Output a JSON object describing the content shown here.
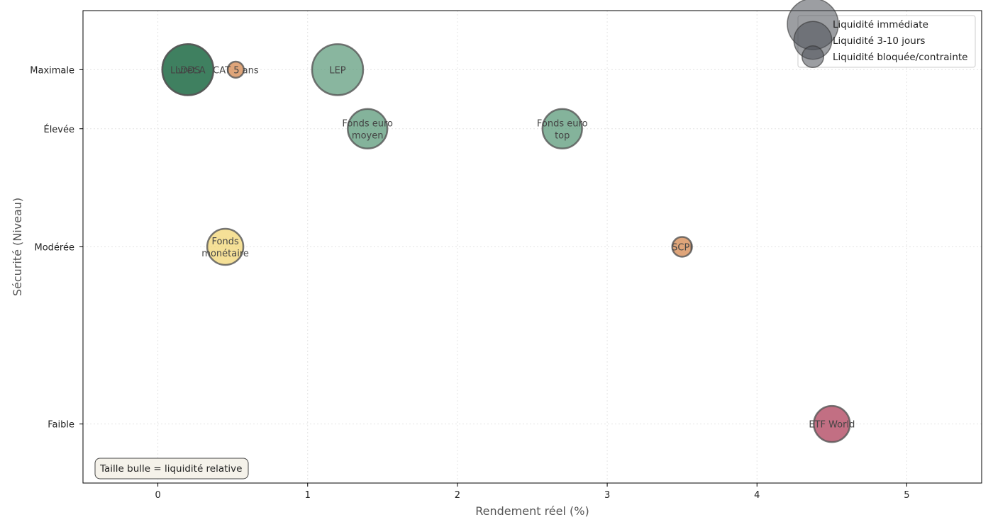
{
  "chart_data": {
    "type": "scatter",
    "title": "",
    "xlabel": "Rendement réel (%)",
    "ylabel": "Sécurité (Niveau)",
    "xlim": [
      -0.5,
      5.5
    ],
    "ylim": [
      0.1,
      4.1
    ],
    "xticks": [
      0,
      1,
      2,
      3,
      4,
      5
    ],
    "yticks": [
      {
        "value": 0.6,
        "label": "Faible"
      },
      {
        "value": 2.1,
        "label": "Modérée"
      },
      {
        "value": 3.1,
        "label": "Élevée"
      },
      {
        "value": 3.6,
        "label": "Maximale"
      }
    ],
    "grid": true,
    "points": [
      {
        "name": "LDDS",
        "lines": [
          "LDDS"
        ],
        "x": 0.2,
        "y": 3.6,
        "liquidity": 1.0,
        "color": "#2e7552",
        "opacity": 0.8
      },
      {
        "name": "Livret A",
        "lines": [
          "Livret A"
        ],
        "x": 0.2,
        "y": 3.6,
        "liquidity": 1.0,
        "color": "#2e7552",
        "opacity": 0.6
      },
      {
        "name": "CAT 5 ans",
        "lines": [
          "CAT 5 ans"
        ],
        "x": 0.52,
        "y": 3.6,
        "liquidity": 0.1,
        "color": "#d4874d",
        "opacity": 0.75
      },
      {
        "name": "LEP",
        "lines": [
          "LEP"
        ],
        "x": 1.2,
        "y": 3.6,
        "liquidity": 1.0,
        "color": "#5b9a7a",
        "opacity": 0.72
      },
      {
        "name": "Fonds euro moyen",
        "lines": [
          "Fonds euro",
          "moyen"
        ],
        "x": 1.4,
        "y": 3.1,
        "liquidity": 0.6,
        "color": "#5b9a7a",
        "opacity": 0.75
      },
      {
        "name": "Fonds euro top",
        "lines": [
          "Fonds euro",
          "top"
        ],
        "x": 2.7,
        "y": 3.1,
        "liquidity": 0.6,
        "color": "#5b9a7a",
        "opacity": 0.75
      },
      {
        "name": "Fonds monétaire",
        "lines": [
          "Fonds",
          "monétaire"
        ],
        "x": 0.45,
        "y": 2.1,
        "liquidity": 0.5,
        "color": "#f0d060",
        "opacity": 0.65
      },
      {
        "name": "SCPI",
        "lines": [
          "SCPI"
        ],
        "x": 3.5,
        "y": 2.1,
        "liquidity": 0.15,
        "color": "#d4874d",
        "opacity": 0.75
      },
      {
        "name": "ETF World",
        "lines": [
          "ETF World"
        ],
        "x": 4.5,
        "y": 0.6,
        "liquidity": 0.5,
        "color": "#a8324f",
        "opacity": 0.7
      }
    ],
    "legend": {
      "placement": "top-right",
      "entries": [
        {
          "label": "Liquidité immédiate",
          "size": 1.0
        },
        {
          "label": "Liquidité 3-10 jours",
          "size": 0.55
        },
        {
          "label": "Liquidité bloquée/contrainte",
          "size": 0.18
        }
      ]
    },
    "note": "Taille bulle = liquidité relative"
  }
}
